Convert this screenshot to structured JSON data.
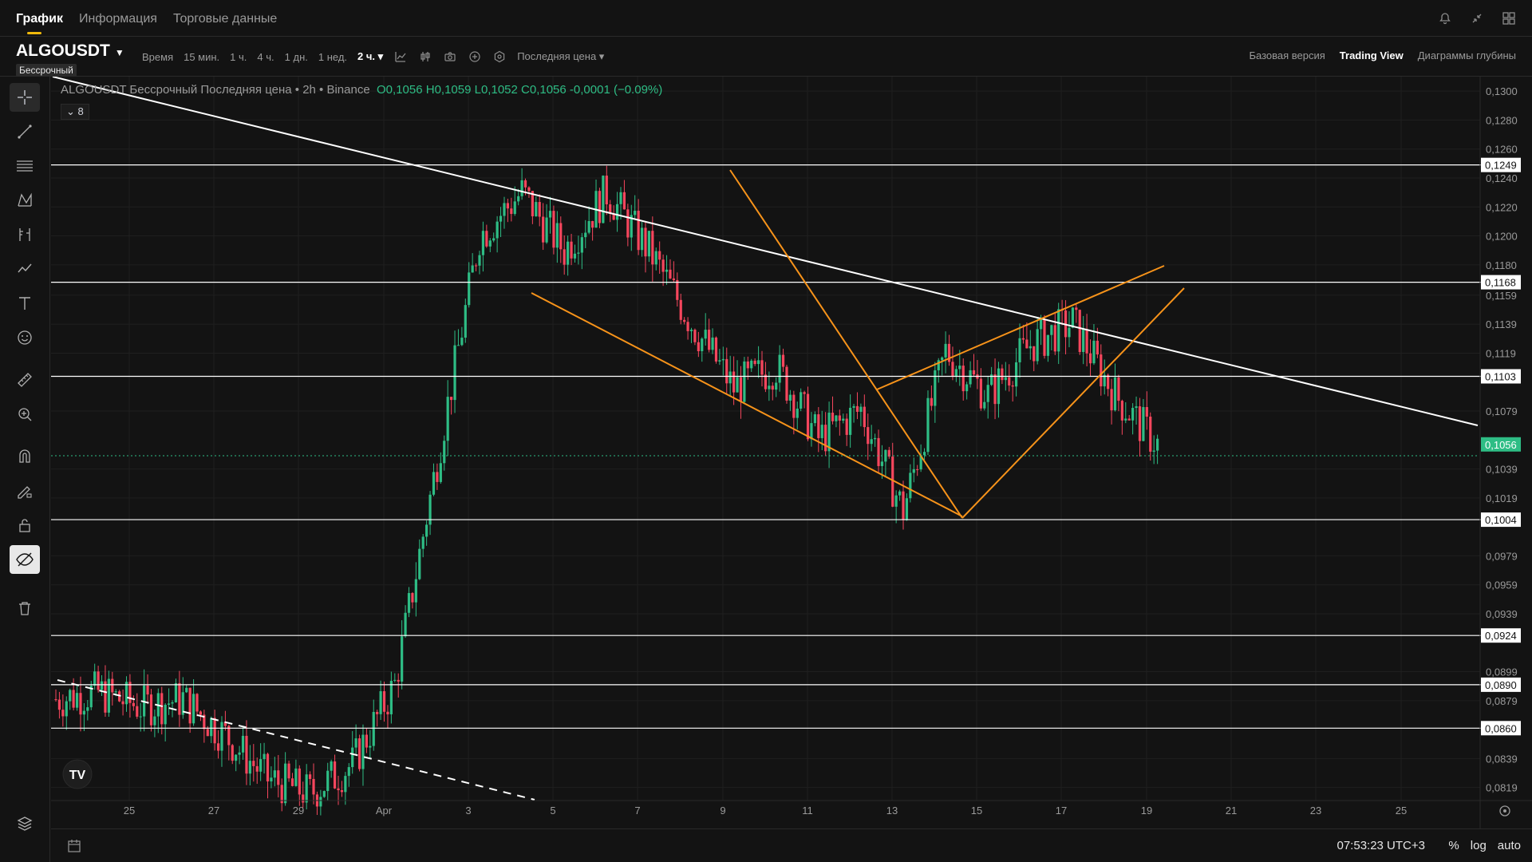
{
  "topnav": {
    "tabs": [
      {
        "label": "График",
        "active": true
      },
      {
        "label": "Информация",
        "active": false
      },
      {
        "label": "Торговые данные",
        "active": false
      }
    ]
  },
  "symbolbar": {
    "symbol": "ALGOUSDT",
    "badge": "Бессрочный",
    "time_label": "Время",
    "intervals": [
      "15 мин.",
      "1 ч.",
      "4 ч.",
      "1 дн.",
      "1 нед."
    ],
    "active_interval": "2 ч.",
    "price_type": "Последняя цена",
    "views": [
      {
        "label": "Базовая версия",
        "active": false
      },
      {
        "label": "Trading View",
        "active": true
      },
      {
        "label": "Диаграммы глубины",
        "active": false
      }
    ]
  },
  "legend": {
    "title": "ALGOUSDT Бессрочный Последняя цена • 2h • Binance",
    "open": "O0,1056",
    "high": "H0,1059",
    "low": "L0,1052",
    "close": "C0,1056",
    "change": "-0,0001 (−0.09%)",
    "indicator_count": "8"
  },
  "price_axis": {
    "ticks": [
      "0,1300",
      "0,1280",
      "0,1260",
      "0,1240",
      "0,1220",
      "0,1200",
      "0,1180",
      "0,1159",
      "0,1139",
      "0,1119",
      "0,1079",
      "0,1039",
      "0,1019",
      "0,0979",
      "0,0959",
      "0,0939",
      "0,0899",
      "0,0879",
      "0,0839",
      "0,0819"
    ],
    "levels": [
      "0,1249",
      "0,1168",
      "0,1103",
      "0,1004",
      "0,0924",
      "0,0890",
      "0,0860"
    ],
    "current": "0,1056"
  },
  "time_axis": {
    "labels": [
      "25",
      "27",
      "29",
      "Apr",
      "3",
      "5",
      "7",
      "9",
      "11",
      "13",
      "15",
      "17",
      "19",
      "21",
      "23",
      "25"
    ]
  },
  "bottombar": {
    "clock": "07:53:23 UTC+3",
    "percent": "%",
    "log": "log",
    "auto": "auto"
  },
  "colors": {
    "background": "#131313",
    "up": "#2ebd85",
    "down": "#f6465d",
    "drawing": "#f7931a",
    "accent": "#f0b90b"
  },
  "chart_data": {
    "type": "candlestick",
    "symbol": "ALGOUSDT",
    "interval": "2h",
    "ylim": [
      0.081,
      0.131
    ],
    "x": [
      "24",
      "25",
      "26",
      "27",
      "28",
      "29",
      "30",
      "31",
      "Apr",
      "2",
      "3",
      "4",
      "5",
      "6",
      "7",
      "8",
      "9",
      "10",
      "11",
      "12",
      "13",
      "14",
      "15",
      "16",
      "17",
      "18",
      "19"
    ],
    "close": [
      0.088,
      0.0885,
      0.0875,
      0.088,
      0.0855,
      0.0825,
      0.0815,
      0.0835,
      0.089,
      0.1045,
      0.12,
      0.123,
      0.119,
      0.123,
      0.119,
      0.114,
      0.1095,
      0.111,
      0.106,
      0.108,
      0.101,
      0.112,
      0.109,
      0.1125,
      0.114,
      0.109,
      0.1056
    ],
    "horizontal_levels": [
      0.1249,
      0.1168,
      0.1103,
      0.1004,
      0.0924,
      0.089,
      0.086
    ],
    "last_price": 0.1056
  }
}
